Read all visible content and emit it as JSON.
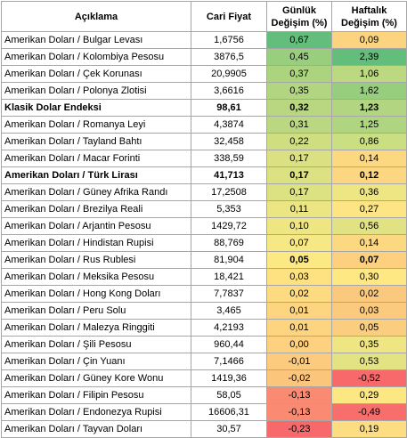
{
  "headers": {
    "name": "Açıklama",
    "price": "Cari Fiyat",
    "daily": "Günlük Değişim (%)",
    "weekly": "Haftalık Değişim (%)"
  },
  "rows": [
    {
      "name": "Amerikan Doları / Bulgar Levası",
      "price": "1,6756",
      "daily": "0,67",
      "weekly": "0,09",
      "dc": "#63be7b",
      "wc": "#fcd47f",
      "bold": false
    },
    {
      "name": "Amerikan Doları / Kolombiya Pesosu",
      "price": "3876,5",
      "daily": "0,45",
      "weekly": "2,39",
      "dc": "#98ce7e",
      "wc": "#63be7b",
      "bold": false
    },
    {
      "name": "Amerikan Doları / Çek Korunası",
      "price": "20,9905",
      "daily": "0,37",
      "weekly": "1,06",
      "dc": "#acd47f",
      "wc": "#bcd981",
      "bold": false
    },
    {
      "name": "Amerikan Doları / Polonya Zlotisi",
      "price": "3,6616",
      "daily": "0,35",
      "weekly": "1,62",
      "dc": "#b1d580",
      "wc": "#97ce7e",
      "bold": false
    },
    {
      "name": "Klasik Dolar Endeksi",
      "price": "98,61",
      "daily": "0,32",
      "weekly": "1,23",
      "dc": "#b8d780",
      "wc": "#b1d580",
      "bold": true
    },
    {
      "name": "Amerikan Doları / Romanya Leyi",
      "price": "4,3874",
      "daily": "0,31",
      "weekly": "1,25",
      "dc": "#bad881",
      "wc": "#b0d580",
      "bold": false
    },
    {
      "name": "Amerikan Doları / Tayland Bahtı",
      "price": "32,458",
      "daily": "0,22",
      "weekly": "0,86",
      "dc": "#d0de82",
      "wc": "#cade82",
      "bold": false
    },
    {
      "name": "Amerikan Doları / Macar Forinti",
      "price": "338,59",
      "daily": "0,17",
      "weekly": "0,14",
      "dc": "#dbe182",
      "wc": "#fcd880",
      "bold": false
    },
    {
      "name": "Amerikan Doları / Türk Lirası",
      "price": "41,713",
      "daily": "0,17",
      "weekly": "0,12",
      "dc": "#dce182",
      "wc": "#fcd680",
      "bold": true
    },
    {
      "name": "Amerikan Doları / Güney Afrika Randı",
      "price": "17,2508",
      "daily": "0,17",
      "weekly": "0,36",
      "dc": "#dce182",
      "wc": "#eee683",
      "bold": false
    },
    {
      "name": "Amerikan Doları / Brezilya Reali",
      "price": "5,353",
      "daily": "0,11",
      "weekly": "0,27",
      "dc": "#ebe583",
      "wc": "#fde583",
      "bold": false
    },
    {
      "name": "Amerikan Doları / Arjantin Pesosu",
      "price": "1429,72",
      "daily": "0,10",
      "weekly": "0,56",
      "dc": "#eee683",
      "wc": "#e0e283",
      "bold": false
    },
    {
      "name": "Amerikan Doları / Hindistan Rupisi",
      "price": "88,769",
      "daily": "0,07",
      "weekly": "0,14",
      "dc": "#f6e884",
      "wc": "#fcd880",
      "bold": false
    },
    {
      "name": "Amerikan Doları / Rus Rublesi",
      "price": "81,904",
      "daily": "0,05",
      "weekly": "0,07",
      "dc": "#fce983",
      "wc": "#fcd07e",
      "bold": false,
      "boldVals": true
    },
    {
      "name": "Amerikan Doları / Meksika Pesosu",
      "price": "18,421",
      "daily": "0,03",
      "weekly": "0,30",
      "dc": "#fee282",
      "wc": "#fde884",
      "bold": false
    },
    {
      "name": "Amerikan Doları / Hong Kong Doları",
      "price": "7,7837",
      "daily": "0,02",
      "weekly": "0,02",
      "dc": "#fedb81",
      "wc": "#fbc97d",
      "bold": false
    },
    {
      "name": "Amerikan Doları / Peru Solu",
      "price": "3,465",
      "daily": "0,01",
      "weekly": "0,03",
      "dc": "#fdd580",
      "wc": "#fbca7d",
      "bold": false
    },
    {
      "name": "Amerikan Doları / Malezya Ringgiti",
      "price": "4,2193",
      "daily": "0,01",
      "weekly": "0,05",
      "dc": "#fdd580",
      "wc": "#fbcd7e",
      "bold": false
    },
    {
      "name": "Amerikan Doları / Şili Pesosu",
      "price": "960,44",
      "daily": "0,00",
      "weekly": "0,35",
      "dc": "#fdd17f",
      "wc": "#efe683",
      "bold": false
    },
    {
      "name": "Amerikan Doları / Çin Yuanı",
      "price": "7,1466",
      "daily": "-0,01",
      "weekly": "0,53",
      "dc": "#fccb7d",
      "wc": "#e3e383",
      "bold": false
    },
    {
      "name": "Amerikan Doları / Güney Kore Wonu",
      "price": "1419,36",
      "daily": "-0,02",
      "weekly": "-0,52",
      "dc": "#fcc57c",
      "wc": "#f8696b",
      "bold": false
    },
    {
      "name": "Amerikan Doları / Filipin Pesosu",
      "price": "58,05",
      "daily": "-0,13",
      "weekly": "0,29",
      "dc": "#fa8b72",
      "wc": "#fde783",
      "bold": false
    },
    {
      "name": "Amerikan Doları / Endonezya Rupisi",
      "price": "16606,31",
      "daily": "-0,13",
      "weekly": "-0,49",
      "dc": "#fa8b72",
      "wc": "#f86e6c",
      "bold": false
    },
    {
      "name": "Amerikan Doları /  Tayvan Doları",
      "price": "30,57",
      "daily": "-0,23",
      "weekly": "0,19",
      "dc": "#f8696b",
      "wc": "#fcdd82",
      "bold": false
    }
  ]
}
